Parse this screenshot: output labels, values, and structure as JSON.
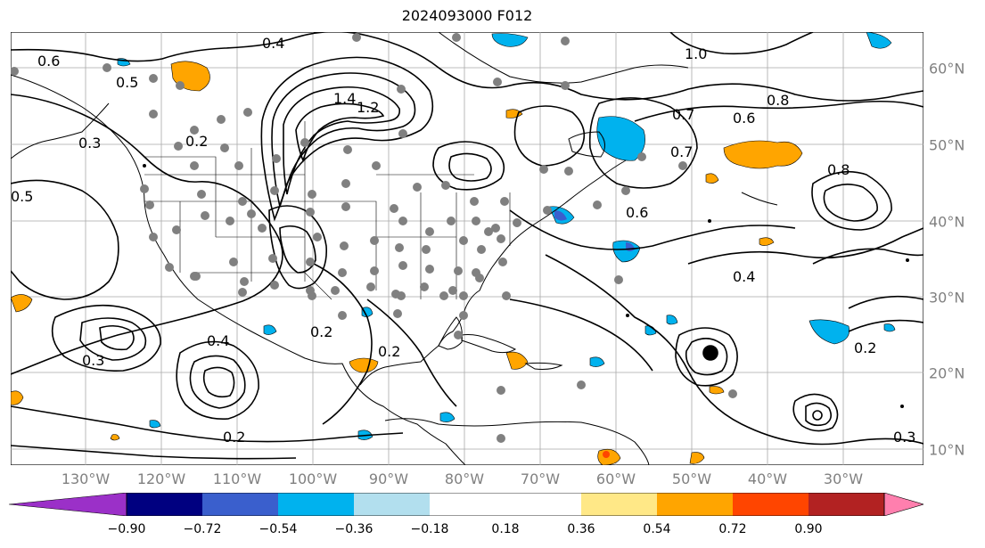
{
  "title": "2024093000 F012",
  "lon_labels": [
    "130°W",
    "120°W",
    "110°W",
    "100°W",
    "90°W",
    "80°W",
    "70°W",
    "60°W",
    "50°W",
    "40°W",
    "30°W"
  ],
  "lat_labels": [
    "60°N",
    "50°N",
    "40°N",
    "30°N",
    "20°N",
    "10°N"
  ],
  "contour_labels": [
    "0.6",
    "0.5",
    "0.4",
    "0.3",
    "0.2",
    "1.0",
    "1.2",
    "1.4",
    "0.8",
    "0.7",
    "0.6",
    "0.4",
    "0.2",
    "0.3",
    "0.2",
    "0.5",
    "0.4",
    "0.2",
    "0.3",
    "0.8",
    "0.7",
    "0.2",
    "0.6"
  ],
  "colorbar": {
    "ticks": [
      "−0.90",
      "−0.72",
      "−0.54",
      "−0.36",
      "−0.18",
      "0.18",
      "0.36",
      "0.54",
      "0.72",
      "0.90"
    ],
    "colors": [
      "#9b30c8",
      "#000080",
      "#3a5fcd",
      "#00b2ee",
      "#b2dfee",
      "#ffffff",
      "#ffe887",
      "#ffa500",
      "#ff4500",
      "#b22222",
      "#ff7fae"
    ]
  },
  "colors": {
    "grid": "#a9a9a9",
    "contour": "#000000",
    "station": "#808080",
    "positive_fill": "#ffa500",
    "negative_fill": "#00b2ee"
  }
}
